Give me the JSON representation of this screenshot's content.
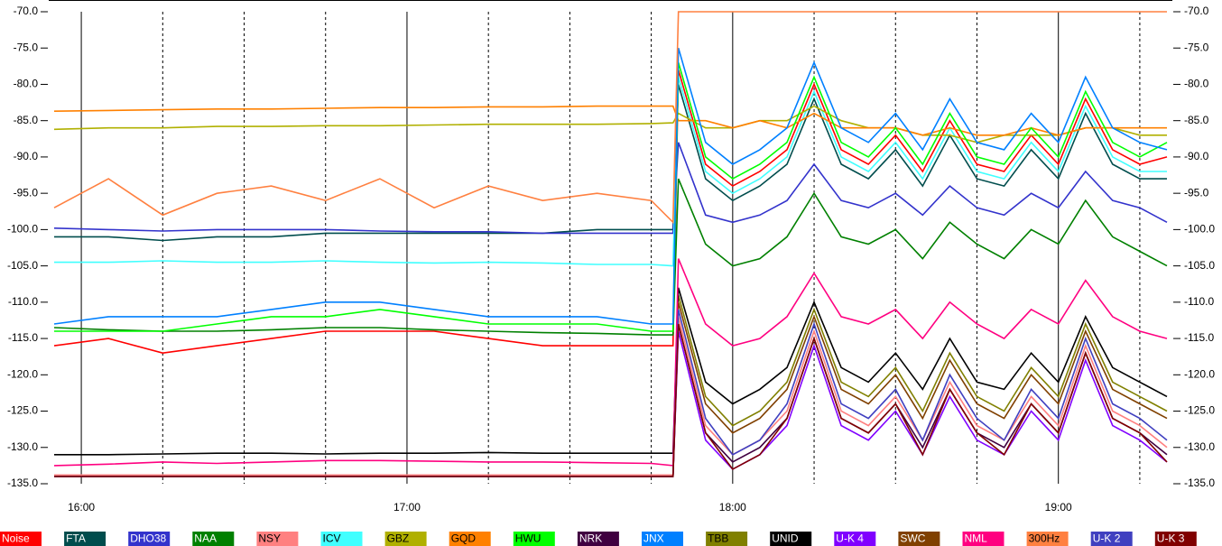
{
  "chart_data": {
    "type": "line",
    "x": [
      "15:55",
      "16:05",
      "16:15",
      "16:25",
      "16:35",
      "16:45",
      "16:55",
      "17:05",
      "17:15",
      "17:25",
      "17:35",
      "17:45",
      "17:49",
      "17:50",
      "17:55",
      "18:00",
      "18:05",
      "18:10",
      "18:15",
      "18:20",
      "18:25",
      "18:30",
      "18:35",
      "18:40",
      "18:45",
      "18:50",
      "18:55",
      "19:00",
      "19:05",
      "19:10",
      "19:15",
      "19:20"
    ],
    "xlim": [
      "15:54",
      "19:21"
    ],
    "xticks": [
      "16:00",
      "17:00",
      "18:00",
      "19:00"
    ],
    "minor_xticks": [
      "16:15",
      "16:30",
      "16:45",
      "17:15",
      "17:30",
      "17:45",
      "18:15",
      "18:30",
      "18:45",
      "19:15"
    ],
    "ylim": [
      -135,
      -70
    ],
    "yticks": [
      {
        "value": -70,
        "label": "-70.0"
      },
      {
        "value": -75,
        "label": "-75.0"
      },
      {
        "value": -80,
        "label": "-80.0"
      },
      {
        "value": -85,
        "label": "-85.0"
      },
      {
        "value": -90,
        "label": "-90.0"
      },
      {
        "value": -95,
        "label": "-95.0"
      },
      {
        "value": -100,
        "label": "-100.0"
      },
      {
        "value": -105,
        "label": "-105.0"
      },
      {
        "value": -110,
        "label": "-110.0"
      },
      {
        "value": -115,
        "label": "-115.0"
      },
      {
        "value": -120,
        "label": "-120.0"
      },
      {
        "value": -125,
        "label": "-125.0"
      },
      {
        "value": -130,
        "label": "-130.0"
      },
      {
        "value": -135,
        "label": "-135.0"
      }
    ],
    "grid": true,
    "series": [
      {
        "name": "Noise",
        "color": "#ff0000",
        "values": [
          -116,
          -115,
          -117,
          -116,
          -115,
          -114,
          -114,
          -114,
          -115,
          -116,
          -116,
          -116,
          -116,
          -78,
          -91,
          -94,
          -92,
          -89,
          -80,
          -89,
          -91,
          -87,
          -92,
          -85,
          -91,
          -92,
          -87,
          -91,
          -82,
          -89,
          -91,
          -90
        ]
      },
      {
        "name": "FTA",
        "color": "#004d4d",
        "values": [
          -101,
          -101,
          -101.5,
          -101,
          -101,
          -100.5,
          -100.5,
          -100.5,
          -100.5,
          -100.5,
          -100,
          -100,
          -100,
          -80,
          -93,
          -96,
          -94,
          -91,
          -82,
          -91,
          -93,
          -89,
          -94,
          -87,
          -93,
          -94,
          -89,
          -93,
          -84,
          -91,
          -93,
          -93
        ]
      },
      {
        "name": "DHO38",
        "color": "#3333cc",
        "values": [
          -99.8,
          -100,
          -100.2,
          -100,
          -100,
          -100,
          -100.2,
          -100.3,
          -100.3,
          -100.5,
          -100.5,
          -100.5,
          -100.5,
          -88,
          -98,
          -99,
          -98,
          -96,
          -91,
          -96,
          -97,
          -95,
          -98,
          -94,
          -97,
          -98,
          -95,
          -97,
          -92,
          -96,
          -97,
          -99
        ]
      },
      {
        "name": "NAA",
        "color": "#008000",
        "values": [
          -113.5,
          -113.8,
          -114,
          -114,
          -113.8,
          -113.5,
          -113.5,
          -113.8,
          -114,
          -114.2,
          -114.3,
          -114.5,
          -114.5,
          -93,
          -102,
          -105,
          -104,
          -101,
          -95,
          -101,
          -102,
          -100,
          -104,
          -99,
          -102,
          -104,
          -100,
          -102,
          -96,
          -101,
          -103,
          -105
        ]
      },
      {
        "name": "NSY",
        "color": "#ff8080",
        "values": [
          -133.8,
          -133.8,
          -133.8,
          -133.8,
          -133.8,
          -133.8,
          -133.8,
          -133.8,
          -133.8,
          -133.8,
          -133.8,
          -133.8,
          -133.8,
          -112,
          -127,
          -131,
          -129,
          -125,
          -114,
          -125,
          -127,
          -123,
          -129,
          -121,
          -127,
          -129,
          -123,
          -127,
          -116,
          -125,
          -127,
          -130
        ]
      },
      {
        "name": "ICV",
        "color": "#40ffff",
        "values": [
          -104.5,
          -104.5,
          -104.3,
          -104.5,
          -104.5,
          -104.3,
          -104.5,
          -104.6,
          -104.5,
          -104.6,
          -104.8,
          -104.8,
          -105,
          -79,
          -92,
          -95,
          -93,
          -90,
          -81,
          -90,
          -92,
          -88,
          -93,
          -86,
          -92,
          -93,
          -88,
          -92,
          -83,
          -90,
          -92,
          -92
        ]
      },
      {
        "name": "GBZ",
        "color": "#b0b000",
        "values": [
          -86.2,
          -86,
          -86,
          -85.8,
          -85.8,
          -85.7,
          -85.7,
          -85.6,
          -85.5,
          -85.5,
          -85.5,
          -85.4,
          -85.3,
          -84,
          -86,
          -86,
          -85,
          -85,
          -83,
          -85,
          -86,
          -86,
          -87,
          -87,
          -88,
          -87,
          -87,
          -87,
          -86,
          -86,
          -87,
          -87
        ]
      },
      {
        "name": "GQD",
        "color": "#ff8000",
        "values": [
          -83.7,
          -83.6,
          -83.5,
          -83.4,
          -83.4,
          -83.3,
          -83.2,
          -83.2,
          -83.1,
          -83.1,
          -83,
          -83,
          -83,
          -85,
          -85,
          -86,
          -85,
          -86,
          -84,
          -86,
          -86,
          -86,
          -87,
          -86,
          -87,
          -87,
          -86,
          -87,
          -86,
          -86,
          -86,
          -86
        ]
      },
      {
        "name": "HWU",
        "color": "#00ff00",
        "values": [
          -114,
          -114,
          -114,
          -113,
          -112,
          -112,
          -111,
          -112,
          -113,
          -113,
          -113,
          -114,
          -114,
          -77,
          -90,
          -93,
          -91,
          -88,
          -79,
          -88,
          -90,
          -86,
          -91,
          -84,
          -90,
          -91,
          -86,
          -90,
          -81,
          -88,
          -90,
          -88
        ]
      },
      {
        "name": "NRK",
        "color": "#400040",
        "values": [
          -134,
          -134,
          -134,
          -134,
          -134,
          -134,
          -134,
          -134,
          -134,
          -134,
          -134,
          -134,
          -134,
          -113,
          -128,
          -132,
          -130,
          -126,
          -115,
          -126,
          -128,
          -124,
          -130,
          -122,
          -128,
          -130,
          -124,
          -128,
          -117,
          -126,
          -128,
          -131
        ]
      },
      {
        "name": "JNX",
        "color": "#0080ff",
        "values": [
          -113,
          -112,
          -112,
          -112,
          -111,
          -110,
          -110,
          -111,
          -112,
          -112,
          -112,
          -113,
          -113,
          -75,
          -88,
          -91,
          -89,
          -86,
          -77,
          -86,
          -88,
          -84,
          -89,
          -82,
          -88,
          -89,
          -84,
          -88,
          -79,
          -86,
          -88,
          -89
        ]
      },
      {
        "name": "TBB",
        "color": "#808000",
        "values": [
          -134,
          -134,
          -134,
          -134,
          -134,
          -134,
          -134,
          -134,
          -134,
          -134,
          -134,
          -134,
          -134,
          -109,
          -123,
          -127,
          -125,
          -121,
          -111,
          -121,
          -123,
          -119,
          -125,
          -117,
          -123,
          -125,
          -119,
          -123,
          -113,
          -121,
          -123,
          -125
        ]
      },
      {
        "name": "UNID",
        "color": "#000000",
        "values": [
          -131,
          -131,
          -130.9,
          -130.8,
          -130.8,
          -130.9,
          -130.8,
          -130.8,
          -130.7,
          -130.8,
          -130.8,
          -130.8,
          -130.8,
          -108,
          -121,
          -124,
          -122,
          -119,
          -110,
          -119,
          -121,
          -117,
          -122,
          -115,
          -121,
          -122,
          -117,
          -121,
          -112,
          -119,
          -121,
          -123
        ]
      },
      {
        "name": "U-K 4",
        "color": "#8000ff",
        "values": [
          -134,
          -134,
          -134,
          -134,
          -134,
          -134,
          -134,
          -134,
          -134,
          -134,
          -134,
          -134,
          -134,
          -114,
          -129,
          -133,
          -131,
          -127,
          -116,
          -127,
          -129,
          -125,
          -131,
          -123,
          -129,
          -131,
          -125,
          -129,
          -118,
          -127,
          -129,
          -132
        ]
      },
      {
        "name": "SWC",
        "color": "#804000",
        "values": [
          -134,
          -134,
          -134,
          -134,
          -134,
          -134,
          -134,
          -134,
          -134,
          -134,
          -134,
          -134,
          -134,
          -110,
          -124,
          -128,
          -126,
          -122,
          -112,
          -122,
          -124,
          -120,
          -126,
          -118,
          -124,
          -126,
          -120,
          -124,
          -114,
          -122,
          -124,
          -126
        ]
      },
      {
        "name": "NML",
        "color": "#ff0080",
        "values": [
          -132.5,
          -132.3,
          -132,
          -132.2,
          -132,
          -131.8,
          -131.8,
          -131.9,
          -132,
          -132,
          -132.1,
          -132.2,
          -132.5,
          -104,
          -113,
          -116,
          -115,
          -112,
          -106,
          -112,
          -113,
          -111,
          -115,
          -110,
          -113,
          -115,
          -111,
          -113,
          -107,
          -112,
          -114,
          -115
        ]
      },
      {
        "name": "300Hz",
        "color": "#ff8040",
        "values": [
          -97,
          -93,
          -98,
          -95,
          -94,
          -96,
          -93,
          -97,
          -94,
          -96,
          -95,
          -96,
          -99,
          -70,
          -70,
          -70,
          -70,
          -70,
          -70,
          -70,
          -70,
          -70,
          -70,
          -70,
          -70,
          -70,
          -70,
          -70,
          -70,
          -70,
          -70,
          -70
        ]
      },
      {
        "name": "U-K 2",
        "color": "#4040c0",
        "values": [
          -134,
          -134,
          -134,
          -134,
          -134,
          -134,
          -134,
          -134,
          -134,
          -134,
          -134,
          -134,
          -134,
          -111,
          -126,
          -131,
          -129,
          -124,
          -113,
          -124,
          -126,
          -122,
          -129,
          -120,
          -126,
          -129,
          -122,
          -126,
          -115,
          -124,
          -126,
          -129
        ]
      },
      {
        "name": "U-K 3",
        "color": "#800000",
        "values": [
          -134,
          -134,
          -134,
          -134,
          -134,
          -134,
          -134,
          -134,
          -134,
          -134,
          -134,
          -134,
          -134,
          -113,
          -128,
          -133,
          -131,
          -126,
          -115,
          -126,
          -128,
          -124,
          -131,
          -122,
          -128,
          -131,
          -124,
          -128,
          -117,
          -126,
          -128,
          -132
        ]
      }
    ]
  }
}
